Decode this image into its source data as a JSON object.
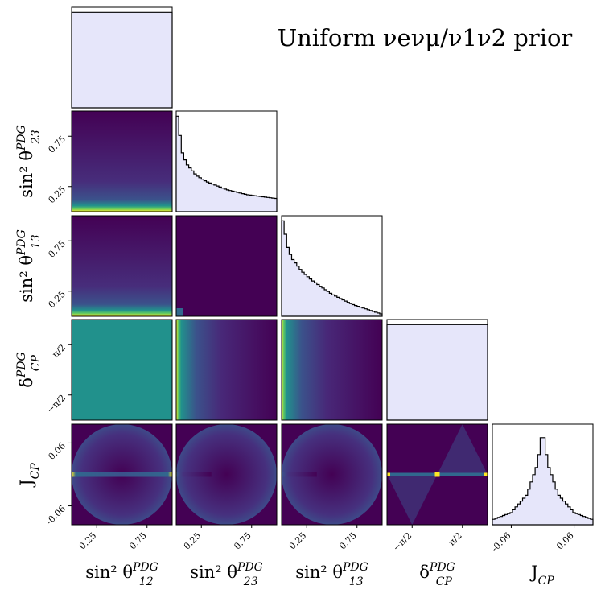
{
  "title": "Uniform νeνμ/ν1ν2 prior",
  "chart_data": {
    "type": "corner",
    "parameters": [
      "sin²θ12PDG",
      "sin²θ23PDG",
      "sin²θ13PDG",
      "δCPPDG",
      "JCP"
    ],
    "axis_labels": {
      "s12": {
        "base": "sin² θ",
        "sub": "12",
        "sup": "PDG"
      },
      "s23": {
        "base": "sin² θ",
        "sub": "23",
        "sup": "PDG"
      },
      "s13": {
        "base": "sin² θ",
        "sub": "13",
        "sup": "PDG"
      },
      "dcp": {
        "base": "δ",
        "sub": "CP",
        "sup": "PDG"
      },
      "jcp": {
        "base": "J",
        "sub": "CP",
        "sup": ""
      }
    },
    "ranges": {
      "s12": [
        0,
        1
      ],
      "s23": [
        0,
        1
      ],
      "s13": [
        0,
        1
      ],
      "dcp": [
        -3.1416,
        3.1416
      ],
      "jcp": [
        -0.096,
        0.096
      ]
    },
    "ticks": {
      "s12": {
        "values": [
          0.25,
          0.75
        ],
        "labels": [
          "0.25",
          "0.75"
        ]
      },
      "s23": {
        "values": [
          0.25,
          0.75
        ],
        "labels": [
          "0.25",
          "0.75"
        ]
      },
      "s13": {
        "values": [
          0.25,
          0.75
        ],
        "labels": [
          "0.25",
          "0.75"
        ]
      },
      "dcp": {
        "values": [
          -1.5708,
          1.5708
        ],
        "labels": [
          "−π/2",
          "π/2"
        ]
      },
      "jcp": {
        "values": [
          -0.06,
          0.06
        ],
        "labels": [
          "-0.06",
          "0.06"
        ]
      }
    },
    "histograms_1d": {
      "s12": {
        "shape": "flat",
        "relative_density": 0.95
      },
      "s23": {
        "shape": "decreasing",
        "x": [
          0.02,
          0.05,
          0.1,
          0.2,
          0.3,
          0.5,
          0.7,
          1.0
        ],
        "relative_density": [
          0.95,
          0.62,
          0.48,
          0.36,
          0.3,
          0.22,
          0.17,
          0.13
        ]
      },
      "s13": {
        "shape": "decreasing",
        "x": [
          0.02,
          0.05,
          0.1,
          0.2,
          0.3,
          0.5,
          0.7,
          1.0
        ],
        "relative_density": [
          0.95,
          0.72,
          0.58,
          0.45,
          0.36,
          0.22,
          0.12,
          0.02
        ]
      },
      "dcp": {
        "shape": "flat",
        "relative_density": 0.95
      },
      "jcp": {
        "shape": "peaked",
        "x": [
          -0.096,
          -0.06,
          -0.03,
          -0.01,
          0.0,
          0.01,
          0.03,
          0.06,
          0.096
        ],
        "relative_density": [
          0.05,
          0.12,
          0.3,
          0.6,
          0.95,
          0.6,
          0.3,
          0.12,
          0.05
        ]
      }
    },
    "colormap": "viridis",
    "hist_fill": "#e6e6fa",
    "hist_edge": "#000000"
  }
}
